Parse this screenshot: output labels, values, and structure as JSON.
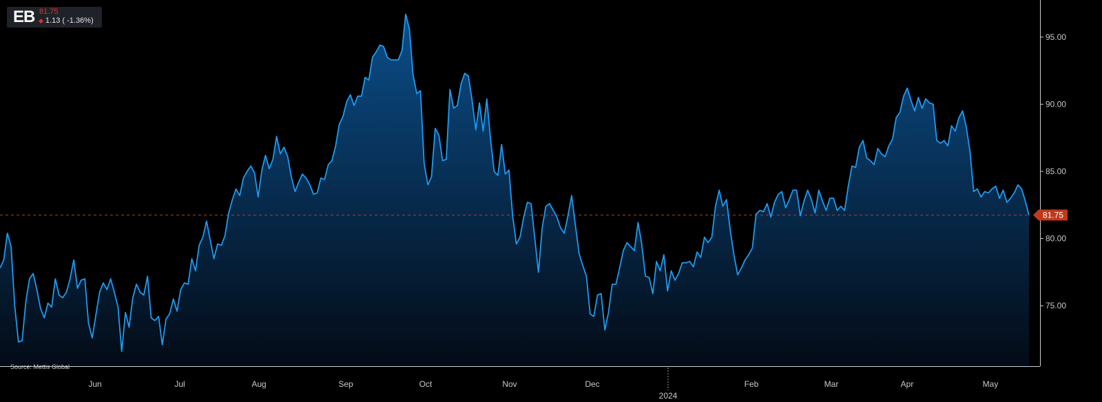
{
  "header": {
    "symbol": "EB",
    "price": "81.75",
    "change": "1.13 ( -1.36%)",
    "change_icon": "triangle-down-icon"
  },
  "source": "Source: Mettis Global",
  "colors": {
    "background": "#000000",
    "line": "#1e9bf0",
    "fill_top": "#0b4e8a",
    "fill_bottom": "#030b16",
    "reference_line": "#c0392b",
    "last_price_badge": "#c0391b"
  },
  "chart_data": {
    "type": "area",
    "title": "",
    "xlabel": "",
    "ylabel": "",
    "ylim": [
      70.5,
      97.5
    ],
    "y_ticks": [
      "75.00",
      "80.00",
      "85.00",
      "90.00",
      "95.00"
    ],
    "x_ticks": [
      "Jun",
      "Jul",
      "Aug",
      "Sep",
      "Oct",
      "Nov",
      "Dec",
      "Feb",
      "Mar",
      "Apr",
      "May"
    ],
    "x_year_label": "2024",
    "last_value": 81.75,
    "last_value_label": "81.75",
    "reference_line": 81.75,
    "grid": false,
    "series": [
      {
        "values": [
          77.8,
          78.4,
          80.4,
          79.4,
          75.0,
          72.3,
          72.4,
          75.3,
          77.0,
          77.4,
          76.2,
          74.8,
          74.1,
          75.2,
          74.9,
          77.0,
          75.8,
          75.6,
          76.0,
          77.0,
          78.4,
          76.3,
          76.9,
          77.0,
          73.7,
          72.6,
          74.3,
          76.0,
          76.7,
          76.2,
          77.0,
          76.0,
          74.9,
          71.6,
          74.5,
          73.4,
          75.6,
          76.6,
          76.0,
          75.8,
          77.2,
          74.1,
          73.9,
          74.2,
          72.1,
          74.0,
          74.4,
          75.5,
          74.6,
          76.2,
          76.7,
          76.6,
          78.5,
          77.6,
          79.5,
          80.1,
          81.3,
          79.9,
          78.5,
          79.6,
          79.5,
          80.2,
          81.9,
          82.9,
          83.7,
          83.2,
          84.5,
          85.0,
          85.4,
          84.9,
          83.1,
          85.1,
          86.2,
          85.2,
          85.9,
          87.6,
          86.3,
          86.8,
          86.1,
          84.6,
          83.5,
          84.2,
          84.8,
          84.5,
          84.0,
          83.3,
          83.4,
          84.5,
          84.4,
          85.5,
          85.8,
          86.9,
          88.5,
          89.1,
          90.2,
          90.7,
          89.9,
          90.6,
          90.6,
          92.0,
          91.8,
          93.5,
          93.9,
          94.4,
          94.3,
          93.5,
          93.3,
          93.3,
          93.3,
          94.0,
          96.7,
          95.6,
          92.2,
          90.8,
          91.0,
          85.6,
          84.0,
          84.6,
          88.2,
          87.7,
          85.8,
          85.9,
          91.1,
          89.7,
          89.9,
          91.5,
          92.3,
          92.1,
          90.3,
          88.1,
          90.1,
          88.0,
          90.4,
          87.4,
          85.0,
          84.7,
          87.0,
          84.8,
          85.1,
          81.7,
          79.6,
          80.1,
          81.6,
          82.7,
          82.6,
          80.0,
          77.5,
          80.8,
          82.4,
          82.6,
          82.1,
          81.6,
          80.8,
          80.4,
          81.7,
          83.2,
          81.0,
          78.9,
          78.0,
          77.2,
          74.4,
          74.2,
          75.8,
          75.9,
          73.2,
          74.5,
          76.6,
          76.6,
          77.8,
          79.1,
          79.7,
          79.4,
          79.1,
          81.2,
          79.6,
          77.2,
          77.1,
          75.9,
          78.3,
          77.6,
          78.8,
          76.1,
          77.6,
          76.9,
          77.4,
          78.2,
          78.2,
          78.3,
          77.9,
          79.0,
          78.6,
          80.1,
          79.7,
          80.1,
          82.4,
          83.6,
          82.4,
          82.9,
          80.6,
          78.8,
          77.3,
          77.8,
          78.4,
          78.8,
          79.3,
          81.8,
          82.1,
          82.0,
          82.6,
          81.6,
          82.7,
          83.3,
          83.5,
          82.3,
          82.9,
          83.6,
          83.6,
          81.7,
          82.8,
          83.6,
          82.9,
          81.9,
          83.6,
          82.8,
          82.1,
          83.0,
          83.0,
          82.1,
          82.4,
          82.1,
          83.9,
          85.4,
          85.3,
          86.8,
          87.3,
          86.0,
          85.8,
          85.5,
          86.7,
          86.3,
          86.1,
          86.9,
          87.4,
          89.0,
          89.4,
          90.6,
          91.2,
          90.3,
          89.5,
          90.5,
          89.7,
          90.4,
          90.1,
          90.0,
          87.3,
          87.1,
          87.3,
          86.9,
          88.4,
          88.0,
          89.0,
          89.5,
          88.3,
          86.5,
          83.5,
          83.7,
          83.1,
          83.5,
          83.4,
          83.7,
          83.9,
          83.0,
          83.6,
          82.7,
          83.0,
          83.4,
          84.0,
          83.7,
          82.8,
          81.75
        ]
      }
    ]
  }
}
